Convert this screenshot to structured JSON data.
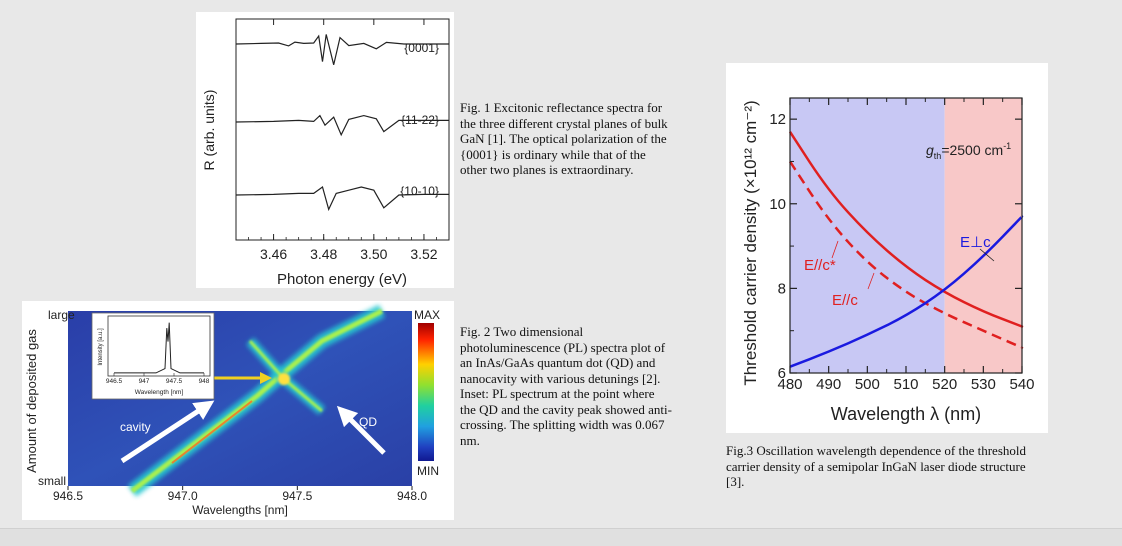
{
  "figures": {
    "fig1": {
      "caption": "Fig. 1 Excitonic reflectance spectra for the three different crystal planes of bulk GaN [1]. The optical polarization of the {0001} is ordinary while that of the other two planes is extraordinary.",
      "chart_data": {
        "type": "line",
        "xlabel": "Photon energy (eV)",
        "ylabel": "R (arb. units)",
        "xlim": [
          3.445,
          3.53
        ],
        "xticks": [
          "3.46",
          "3.48",
          "3.50",
          "3.52"
        ],
        "series": [
          {
            "name": "{0001}",
            "x": [
              3.445,
              3.455,
              3.462,
              3.466,
              3.4685,
              3.472,
              3.476,
              3.478,
              3.4795,
              3.481,
              3.484,
              3.4865,
              3.49,
              3.496,
              3.501,
              3.505,
              3.512,
              3.52,
              3.53
            ],
            "values": [
              0.0,
              0.02,
              0.03,
              -0.06,
              0.06,
              0.02,
              0.03,
              0.25,
              -0.55,
              0.3,
              -0.65,
              0.2,
              -0.05,
              0.02,
              -0.15,
              0.05,
              0.0,
              0.0,
              0.0
            ]
          },
          {
            "name": "{11-22}",
            "x": [
              3.445,
              3.46,
              3.47,
              3.476,
              3.4785,
              3.4805,
              3.484,
              3.487,
              3.49,
              3.496,
              3.501,
              3.504,
              3.51,
              3.52,
              3.53
            ],
            "values": [
              0.0,
              0.02,
              0.05,
              0.02,
              0.2,
              -0.1,
              0.15,
              -0.4,
              0.08,
              0.2,
              0.1,
              -0.3,
              0.05,
              0.05,
              0.05
            ]
          },
          {
            "name": "{10-10}",
            "x": [
              3.445,
              3.46,
              3.47,
              3.476,
              3.4795,
              3.482,
              3.485,
              3.49,
              3.495,
              3.5,
              3.504,
              3.51,
              3.52,
              3.53
            ],
            "values": [
              0.0,
              0.02,
              0.05,
              0.05,
              0.25,
              -0.45,
              0.05,
              0.15,
              0.25,
              0.15,
              -0.4,
              0.0,
              0.02,
              0.02
            ]
          }
        ]
      }
    },
    "fig2": {
      "caption": "Fig. 2 Two dimensional photoluminescence (PL) spectra plot of an InAs/GaAs quantum dot (QD) and nanocavity with various detunings [2]. Inset: PL spectrum at the point where the QD and the cavity peak showed anti-crossing. The splitting width was 0.067 nm.",
      "chart_data": {
        "type": "heatmap",
        "xlabel": "Wavelengths [nm]",
        "ylabel": "Amount of deposited gas",
        "xlim": [
          946.5,
          948.0
        ],
        "xticks": [
          "946.5",
          "947.0",
          "947.5",
          "948.0"
        ],
        "y_top_label": "large",
        "y_bottom_label": "small",
        "colorbar_max": "MAX",
        "colorbar_min": "MIN",
        "annotations": [
          "cavity",
          "QD"
        ],
        "anticrossing_wavelength": 947.4,
        "inset": {
          "ylabel": "Intensity [a.u.]",
          "xlabel": "Wavelength [nm]",
          "xticks": [
            "946.5",
            "947",
            "947.5",
            "948"
          ],
          "x": [
            946.5,
            947.2,
            947.35,
            947.38,
            947.4,
            947.42,
            947.45,
            947.6,
            948.0
          ],
          "values": [
            0.02,
            0.02,
            0.1,
            0.85,
            0.6,
            0.95,
            0.1,
            0.02,
            0.02
          ]
        }
      }
    },
    "fig3": {
      "caption": "Fig.3 Oscillation wavelength dependence of the threshold carrier density of a semipolar InGaN laser diode structure [3].",
      "chart_data": {
        "type": "line",
        "xlabel": "Wavelength λ (nm)",
        "ylabel": "Threshold carrier density (×10¹² cm⁻²)",
        "xlim": [
          480,
          540
        ],
        "ylim": [
          6,
          12.5
        ],
        "xticks": [
          "480",
          "490",
          "500",
          "510",
          "520",
          "530",
          "540"
        ],
        "yticks": [
          "6",
          "8",
          "10",
          "12"
        ],
        "annotation": "g_th=2500 cm⁻¹",
        "gth_symbol": "g",
        "gth_subscript": "th",
        "gth_value": "=2500 cm",
        "gth_exponent": "-1",
        "regions": [
          {
            "from": 480,
            "to": 520,
            "color": "#c8c8f4"
          },
          {
            "from": 520,
            "to": 540,
            "color": "#f8c8c8"
          }
        ],
        "series": [
          {
            "name": "E//c",
            "color": "#e02020",
            "style": "solid",
            "x": [
              480,
              490,
              500,
              510,
              520,
              530,
              540
            ],
            "values": [
              11.7,
              10.3,
              9.3,
              8.5,
              7.9,
              7.45,
              7.1
            ]
          },
          {
            "name": "E//c*",
            "color": "#e02020",
            "style": "dashed",
            "x": [
              480,
              490,
              500,
              510,
              520,
              530,
              540
            ],
            "values": [
              11.0,
              9.6,
              8.6,
              7.9,
              7.4,
              7.0,
              6.6
            ]
          },
          {
            "name": "E⊥c",
            "color": "#1a1ae0",
            "style": "solid",
            "x": [
              480,
              490,
              500,
              510,
              520,
              530,
              540
            ],
            "values": [
              6.15,
              6.5,
              6.9,
              7.35,
              7.95,
              8.75,
              9.7
            ]
          }
        ]
      }
    }
  }
}
